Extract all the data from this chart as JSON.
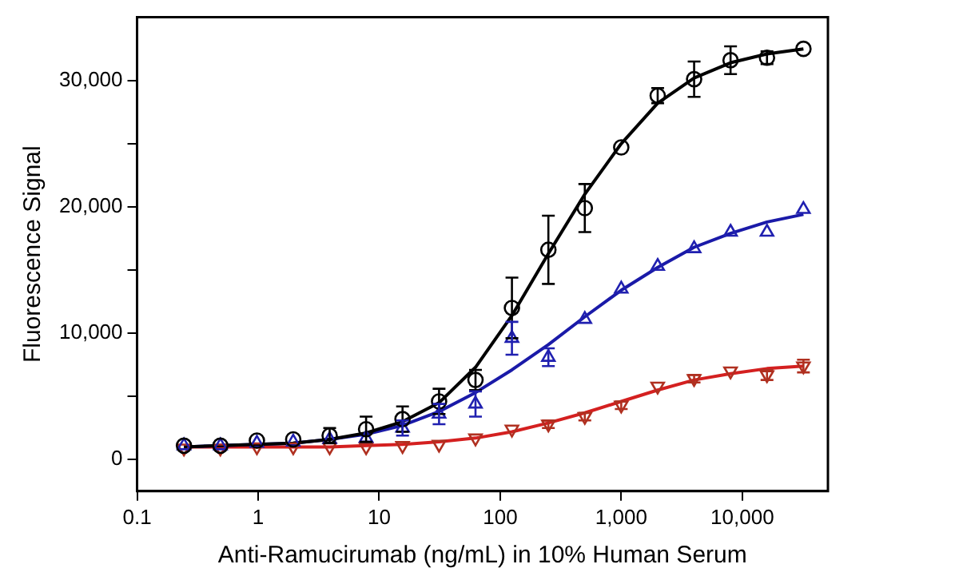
{
  "chart_data": {
    "type": "scatter",
    "xlabel": "Anti-Ramucirumab (ng/mL) in 10% Human Serum",
    "ylabel": "Fluorescence Signal",
    "log": "x",
    "grid": false,
    "legend": false,
    "xlim": [
      0.1,
      51000
    ],
    "xticks": [
      0.1,
      1,
      10,
      100,
      {
        "value": 1000,
        "label": "1,000"
      },
      {
        "value": 10000,
        "label": "10,000"
      }
    ],
    "ylim": [
      -2500,
      35000
    ],
    "yticks": [
      0,
      {
        "value": 5000,
        "label": null
      },
      {
        "value": 10000,
        "label": "10,000"
      },
      {
        "value": 15000,
        "label": null
      },
      {
        "value": 20000,
        "label": "20,000"
      },
      {
        "value": 25000,
        "label": null
      },
      {
        "value": 30000,
        "label": "30,000"
      }
    ],
    "series": [
      {
        "marker": "circle",
        "color": "#000000",
        "x": [
          0.244,
          0.488,
          0.977,
          1.95,
          3.9,
          7.8,
          15.6,
          31.25,
          62.5,
          125,
          250,
          500,
          1000,
          2000,
          4000,
          8000,
          16000,
          32000
        ],
        "values": [
          1100,
          1100,
          1500,
          1600,
          1900,
          2400,
          3200,
          4600,
          6300,
          12000,
          16600,
          19900,
          24700,
          28800,
          30100,
          31600,
          31800,
          32500
        ],
        "errors": [
          null,
          null,
          null,
          null,
          600,
          1000,
          1000,
          1000,
          800,
          2400,
          2700,
          1900,
          null,
          600,
          1400,
          1100,
          500,
          null
        ]
      },
      {
        "marker": "triangle",
        "color": "#2020b0",
        "x": [
          0.244,
          0.488,
          0.977,
          1.95,
          3.9,
          7.8,
          15.6,
          31.25,
          62.5,
          125,
          250,
          500,
          1000,
          2000,
          4000,
          8000,
          16000,
          32000
        ],
        "values": [
          1100,
          1100,
          1300,
          1400,
          1600,
          1700,
          2500,
          3600,
          4400,
          9600,
          8100,
          11100,
          13500,
          15300,
          16700,
          18000,
          18000,
          19800
        ],
        "errors": [
          null,
          null,
          null,
          null,
          null,
          null,
          600,
          800,
          1000,
          1300,
          700,
          null,
          null,
          null,
          null,
          null,
          null,
          null
        ]
      },
      {
        "marker": "triangle-down",
        "color": "#b03020",
        "x": [
          0.244,
          0.488,
          0.977,
          1.95,
          3.9,
          7.8,
          15.6,
          31.25,
          62.5,
          125,
          250,
          500,
          1000,
          2000,
          4000,
          8000,
          16000,
          32000
        ],
        "values": [
          900,
          900,
          1000,
          1000,
          1000,
          1000,
          1100,
          1200,
          1700,
          2400,
          2800,
          3400,
          4300,
          5800,
          6400,
          7000,
          6700,
          7400
        ],
        "errors": [
          null,
          null,
          null,
          null,
          null,
          null,
          null,
          null,
          null,
          null,
          300,
          300,
          300,
          null,
          300,
          null,
          400,
          500
        ]
      },
      {
        "type": "line",
        "marker": "none",
        "line_style": "solid",
        "color": "#000000",
        "x": [
          0.244,
          0.488,
          0.977,
          1.95,
          3.9,
          7.8,
          15.6,
          31.25,
          62.5,
          125,
          250,
          500,
          1000,
          2000,
          4000,
          8000,
          16000,
          32000
        ],
        "values": [
          1000,
          1100,
          1200,
          1300,
          1600,
          2100,
          3000,
          4500,
          7300,
          11400,
          16300,
          21000,
          25000,
          28200,
          30200,
          31400,
          32100,
          32500
        ]
      },
      {
        "type": "line",
        "marker": "none",
        "line_style": "solid",
        "color": "#1a1aa8",
        "x": [
          0.244,
          0.488,
          0.977,
          1.95,
          3.9,
          7.8,
          15.6,
          31.25,
          62.5,
          125,
          250,
          500,
          1000,
          2000,
          4000,
          8000,
          16000,
          32000
        ],
        "values": [
          1000,
          1100,
          1200,
          1300,
          1600,
          2000,
          2700,
          3800,
          5300,
          7100,
          9100,
          11300,
          13400,
          15200,
          16800,
          17900,
          18800,
          19400
        ]
      },
      {
        "type": "line",
        "marker": "none",
        "line_style": "solid",
        "color": "#d42020",
        "x": [
          0.244,
          0.488,
          0.977,
          1.95,
          3.9,
          7.8,
          15.6,
          31.25,
          62.5,
          125,
          250,
          500,
          1000,
          2000,
          4000,
          8000,
          16000,
          32000
        ],
        "values": [
          1000,
          1000,
          1000,
          1000,
          1000,
          1100,
          1200,
          1400,
          1700,
          2200,
          2900,
          3700,
          4600,
          5500,
          6300,
          6800,
          7200,
          7400
        ]
      }
    ]
  }
}
